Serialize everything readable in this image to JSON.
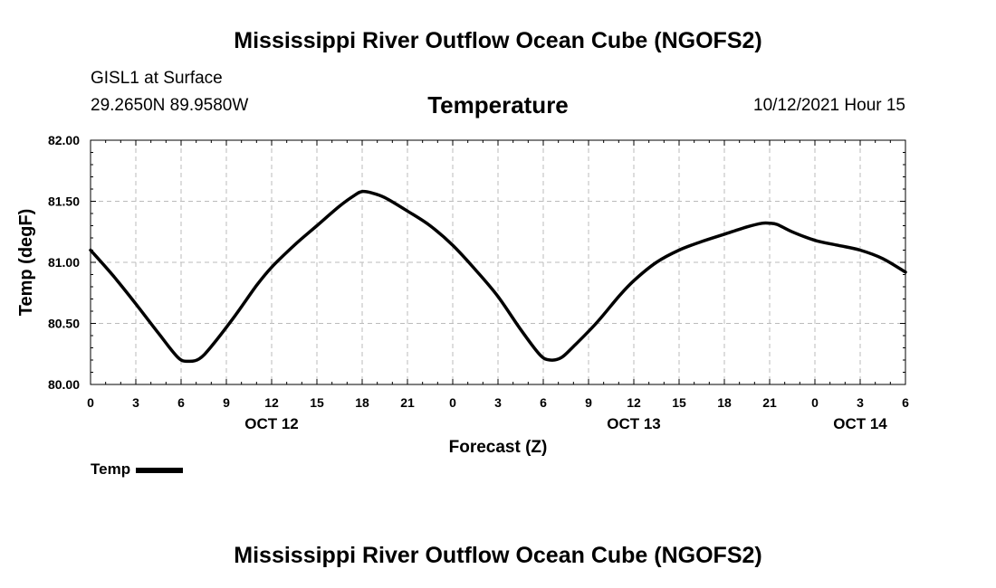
{
  "header": {
    "title": "Mississippi River Outflow Ocean Cube (NGOFS2)",
    "station": "GISL1 at Surface",
    "coords": "29.2650N  89.9580W",
    "chart_title": "Temperature",
    "datetime": "10/12/2021 Hour 15"
  },
  "footer": {
    "title": "Mississippi River Outflow Ocean Cube (NGOFS2)"
  },
  "legend": {
    "label": "Temp",
    "color": "#000000"
  },
  "chart_data": {
    "type": "line",
    "title": "Temperature",
    "xlabel": "Forecast (Z)",
    "ylabel": "Temp (degF)",
    "ylim": [
      80.0,
      82.0
    ],
    "xlim": [
      0,
      54
    ],
    "yticks": [
      80.0,
      80.5,
      81.0,
      81.5,
      82.0
    ],
    "ytick_labels": [
      "80.00",
      "80.50",
      "81.00",
      "81.50",
      "82.00"
    ],
    "xticks": [
      0,
      3,
      6,
      9,
      12,
      15,
      18,
      21,
      24,
      27,
      30,
      33,
      36,
      39,
      42,
      45,
      48,
      51,
      54
    ],
    "xtick_labels": [
      "0",
      "3",
      "6",
      "9",
      "12",
      "15",
      "18",
      "21",
      "0",
      "3",
      "6",
      "9",
      "12",
      "15",
      "18",
      "21",
      "0",
      "3",
      "6"
    ],
    "date_labels": [
      {
        "x": 12,
        "label": "OCT 12"
      },
      {
        "x": 36,
        "label": "OCT 13"
      },
      {
        "x": 51,
        "label": "OCT 14"
      }
    ],
    "grid": true,
    "series": [
      {
        "name": "Temp",
        "color": "#000000",
        "x": [
          0,
          1.5,
          3,
          4.5,
          5.8,
          6.5,
          7.2,
          8,
          9.5,
          11,
          12,
          13.5,
          15,
          16.5,
          17.5,
          18,
          18.6,
          19.5,
          21,
          22.5,
          24,
          25.5,
          27,
          28.5,
          29.8,
          30.5,
          31.2,
          32,
          33.5,
          35,
          36,
          37.5,
          39,
          40.5,
          42,
          43.5,
          44.5,
          45,
          45.5,
          46.5,
          48,
          49.5,
          51,
          52.5,
          54
        ],
        "y": [
          81.1,
          80.89,
          80.66,
          80.42,
          80.22,
          80.19,
          80.21,
          80.31,
          80.55,
          80.81,
          80.96,
          81.14,
          81.3,
          81.46,
          81.55,
          81.58,
          81.57,
          81.53,
          81.42,
          81.3,
          81.14,
          80.94,
          80.72,
          80.45,
          80.24,
          80.2,
          80.22,
          80.31,
          80.5,
          80.72,
          80.85,
          81.0,
          81.1,
          81.17,
          81.23,
          81.29,
          81.32,
          81.32,
          81.31,
          81.25,
          81.18,
          81.14,
          81.1,
          81.03,
          80.92
        ]
      }
    ]
  }
}
